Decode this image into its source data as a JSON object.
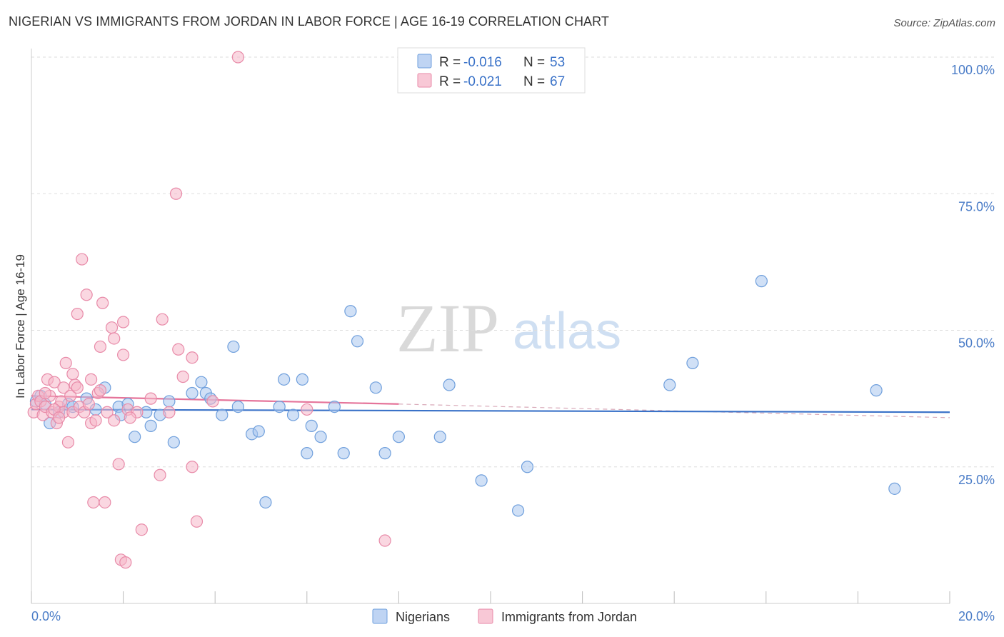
{
  "title": "NIGERIAN VS IMMIGRANTS FROM JORDAN IN LABOR FORCE | AGE 16-19 CORRELATION CHART",
  "source": "Source: ZipAtlas.com",
  "watermark": {
    "zip": "ZIP",
    "atlas": "atlas"
  },
  "colors": {
    "blue_fill": "#a9c6ef",
    "blue_stroke": "#6f9fdc",
    "blue_line": "#3a72c8",
    "pink_fill": "#f6b6c8",
    "pink_stroke": "#e88aa8",
    "pink_line": "#e5749a",
    "tick_text": "#4a7cc7"
  },
  "legend": {
    "rows": [
      {
        "r_label": "R = ",
        "r_value": "-0.016",
        "n_label": "N = ",
        "n_value": "53"
      },
      {
        "r_label": "R = ",
        "r_value": "-0.021",
        "n_label": "N = ",
        "n_value": "67"
      }
    ]
  },
  "bottom_legend": [
    "Nigerians",
    "Immigrants from Jordan"
  ],
  "chart_data": {
    "type": "scatter",
    "title": "NIGERIAN VS IMMIGRANTS FROM JORDAN IN LABOR FORCE | AGE 16-19 CORRELATION CHART",
    "xlabel": "",
    "ylabel": "In Labor Force | Age 16-19",
    "xlim": [
      0,
      20
    ],
    "ylim": [
      0,
      100
    ],
    "x_tick_labels": [
      "0.0%",
      "20.0%"
    ],
    "y_ticks": [
      25,
      50,
      75,
      100
    ],
    "y_tick_labels": [
      "25.0%",
      "50.0%",
      "75.0%",
      "100.0%"
    ],
    "series": [
      {
        "name": "Nigerians",
        "r": -0.016,
        "n": 53,
        "trend": {
          "x0": 0,
          "y0": 35.5,
          "x1": 20,
          "y1": 35.0
        },
        "points": [
          [
            0.1,
            37.0
          ],
          [
            0.2,
            38.0
          ],
          [
            0.3,
            36.5
          ],
          [
            0.4,
            33.0
          ],
          [
            0.6,
            35.0
          ],
          [
            0.8,
            36.5
          ],
          [
            0.9,
            36.0
          ],
          [
            1.2,
            37.5
          ],
          [
            1.4,
            35.5
          ],
          [
            1.6,
            39.5
          ],
          [
            1.9,
            36.0
          ],
          [
            1.95,
            34.5
          ],
          [
            2.1,
            36.5
          ],
          [
            2.25,
            30.5
          ],
          [
            2.5,
            35.0
          ],
          [
            2.6,
            32.5
          ],
          [
            2.8,
            34.5
          ],
          [
            3.0,
            37.0
          ],
          [
            3.1,
            29.5
          ],
          [
            3.5,
            38.5
          ],
          [
            3.7,
            40.5
          ],
          [
            3.8,
            38.5
          ],
          [
            3.9,
            37.5
          ],
          [
            4.15,
            34.5
          ],
          [
            4.4,
            47.0
          ],
          [
            4.5,
            36.0
          ],
          [
            4.8,
            31.0
          ],
          [
            4.95,
            31.5
          ],
          [
            5.1,
            18.5
          ],
          [
            5.4,
            36.0
          ],
          [
            5.5,
            41.0
          ],
          [
            5.7,
            34.5
          ],
          [
            5.9,
            41.0
          ],
          [
            6.0,
            27.5
          ],
          [
            6.1,
            32.5
          ],
          [
            6.3,
            30.5
          ],
          [
            6.6,
            36.0
          ],
          [
            6.8,
            27.5
          ],
          [
            6.95,
            53.5
          ],
          [
            7.1,
            48.0
          ],
          [
            7.5,
            39.5
          ],
          [
            7.7,
            27.5
          ],
          [
            8.0,
            30.5
          ],
          [
            8.9,
            30.5
          ],
          [
            9.1,
            40.0
          ],
          [
            9.8,
            22.5
          ],
          [
            10.6,
            17.0
          ],
          [
            10.8,
            25.0
          ],
          [
            13.9,
            40.0
          ],
          [
            14.4,
            44.0
          ],
          [
            15.9,
            59.0
          ],
          [
            18.4,
            39.0
          ],
          [
            18.8,
            21.0
          ]
        ]
      },
      {
        "name": "Immigrants from Jordan",
        "r": -0.021,
        "n": 67,
        "trend": {
          "x0": 0,
          "y0": 38.0,
          "x1": 8,
          "y1": 36.5
        },
        "trend_extension": {
          "x0": 8,
          "y0": 36.5,
          "x1": 20,
          "y1": 34.0
        },
        "points": [
          [
            0.05,
            35.0
          ],
          [
            0.1,
            36.5
          ],
          [
            0.15,
            38.0
          ],
          [
            0.2,
            37.0
          ],
          [
            0.25,
            34.5
          ],
          [
            0.3,
            36.0
          ],
          [
            0.35,
            41.0
          ],
          [
            0.4,
            38.0
          ],
          [
            0.45,
            35.0
          ],
          [
            0.5,
            40.5
          ],
          [
            0.55,
            33.0
          ],
          [
            0.6,
            36.0
          ],
          [
            0.65,
            37.0
          ],
          [
            0.7,
            35.0
          ],
          [
            0.7,
            39.5
          ],
          [
            0.75,
            44.0
          ],
          [
            0.8,
            29.5
          ],
          [
            0.85,
            38.0
          ],
          [
            0.9,
            42.0
          ],
          [
            0.9,
            35.0
          ],
          [
            0.95,
            40.0
          ],
          [
            1.0,
            39.5
          ],
          [
            1.0,
            53.0
          ],
          [
            1.05,
            36.0
          ],
          [
            1.1,
            63.0
          ],
          [
            1.15,
            35.0
          ],
          [
            1.2,
            56.5
          ],
          [
            1.3,
            41.0
          ],
          [
            1.3,
            33.0
          ],
          [
            1.35,
            18.5
          ],
          [
            1.4,
            33.5
          ],
          [
            1.45,
            38.5
          ],
          [
            1.5,
            47.0
          ],
          [
            1.55,
            55.0
          ],
          [
            1.6,
            18.5
          ],
          [
            1.65,
            35.0
          ],
          [
            1.75,
            50.5
          ],
          [
            1.8,
            48.5
          ],
          [
            1.8,
            33.5
          ],
          [
            1.9,
            25.5
          ],
          [
            1.95,
            8.0
          ],
          [
            2.0,
            51.5
          ],
          [
            2.0,
            45.5
          ],
          [
            2.05,
            7.5
          ],
          [
            2.1,
            35.5
          ],
          [
            2.3,
            35.0
          ],
          [
            2.4,
            13.5
          ],
          [
            2.6,
            37.5
          ],
          [
            2.8,
            23.5
          ],
          [
            2.85,
            52.0
          ],
          [
            3.0,
            35.0
          ],
          [
            3.15,
            75.0
          ],
          [
            3.2,
            46.5
          ],
          [
            3.3,
            41.5
          ],
          [
            3.5,
            45.0
          ],
          [
            3.5,
            25.0
          ],
          [
            3.6,
            15.0
          ],
          [
            3.95,
            37.0
          ],
          [
            4.5,
            100.0
          ],
          [
            6.0,
            35.5
          ],
          [
            7.7,
            11.5
          ],
          [
            0.3,
            38.5
          ],
          [
            0.5,
            35.5
          ],
          [
            0.6,
            34.0
          ],
          [
            1.25,
            36.5
          ],
          [
            1.5,
            39.0
          ],
          [
            2.15,
            34.0
          ]
        ]
      }
    ],
    "legend_position": "top-center",
    "grid": true
  }
}
